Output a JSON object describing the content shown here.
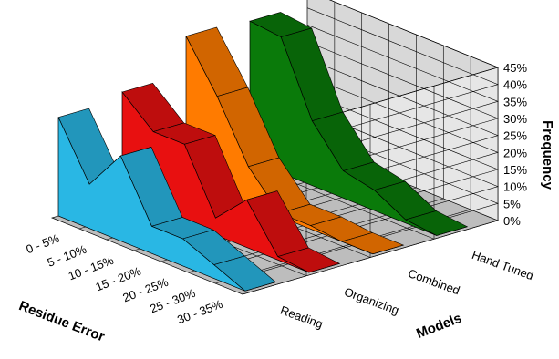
{
  "chart_data": {
    "type": "area",
    "subtype": "3d-area",
    "title": "",
    "xlabel": "Residue Error",
    "ylabel": "Frequency",
    "zlabel": "Models",
    "categories": [
      "0 - 5%",
      "5 - 10%",
      "10 - 15%",
      "15 - 20%",
      "20 - 25%",
      "25 - 30%",
      "30 - 35%"
    ],
    "y_ticks": [
      "0%",
      "5%",
      "10%",
      "15%",
      "20%",
      "25%",
      "30%",
      "35%",
      "40%",
      "45%"
    ],
    "ylim": [
      0,
      45
    ],
    "grid": true,
    "series": [
      {
        "name": "Reading",
        "color": "#29B7E4",
        "values": [
          29,
          13,
          25,
          8,
          8,
          4,
          0
        ]
      },
      {
        "name": "Organizing",
        "color": "#E81010",
        "values": [
          31,
          23,
          23,
          5,
          14,
          1,
          0
        ]
      },
      {
        "name": "Combined",
        "color": "#FF7B00",
        "values": [
          42,
          28,
          11,
          1,
          1,
          0,
          0
        ]
      },
      {
        "name": "Hand Tuned",
        "color": "#0A7A0A",
        "values": [
          41,
          40,
          19,
          8,
          6,
          1,
          0
        ]
      }
    ]
  }
}
